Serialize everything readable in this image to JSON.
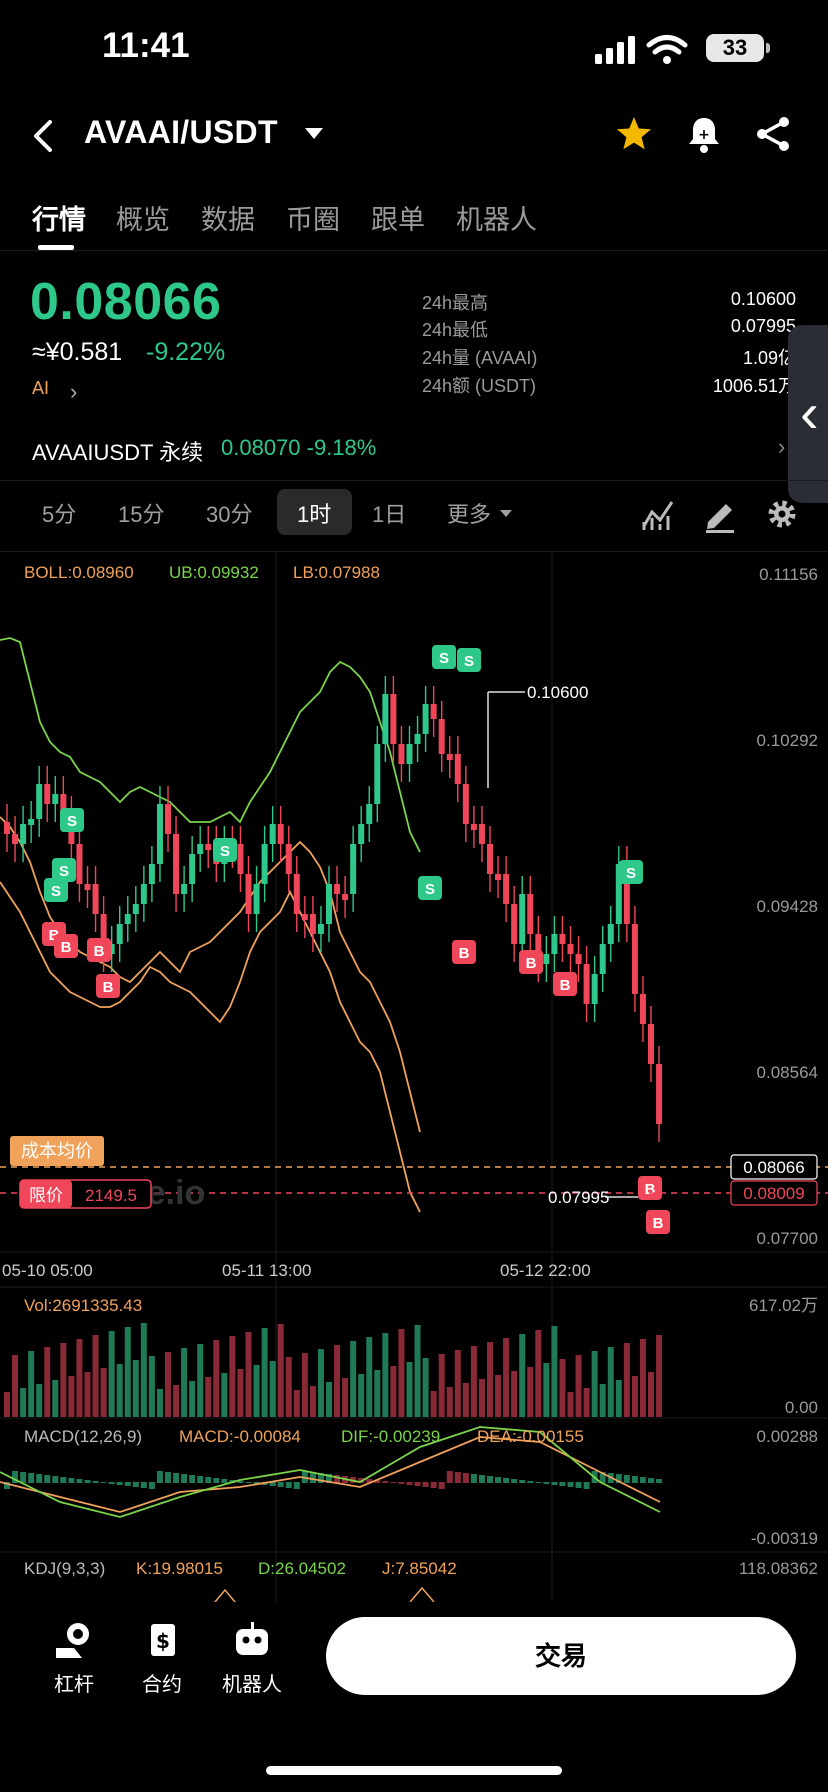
{
  "status_bar": {
    "time": "11:41",
    "battery": "33"
  },
  "header": {
    "pair": "AVAAI/USDT"
  },
  "tabs": [
    "行情",
    "概览",
    "数据",
    "币圈",
    "跟单",
    "机器人"
  ],
  "ticker": {
    "price": "0.08066",
    "cny": "≈¥0.581",
    "change": "-9.22%",
    "ai_label": "AI",
    "stats": [
      {
        "label": "24h最高",
        "value": "0.10600"
      },
      {
        "label": "24h最低",
        "value": "0.07995"
      },
      {
        "label": "24h量 (AVAAI)",
        "value": "1.09亿"
      },
      {
        "label": "24h额 (USDT)",
        "value": "1006.51万"
      }
    ],
    "perpetual": {
      "name": "AVAAIUSDT 永续",
      "value": "0.08070  -9.18%"
    }
  },
  "timeframes": [
    "5分",
    "15分",
    "30分",
    "1时",
    "1日",
    "更多"
  ],
  "timeframe_selected": "1时",
  "chart": {
    "boll": "BOLL:0.08960",
    "ub": "UB:0.09932",
    "lb": "LB:0.07988",
    "price_axis": [
      "0.11156",
      "0.10292",
      "0.09428",
      "0.08564",
      "0.07700"
    ],
    "time_axis": [
      "05-10 05:00",
      "05-11 13:00",
      "05-12 22:00"
    ],
    "high_marker": "0.10600",
    "low_marker": "0.07995",
    "current_price_tag": "0.08066",
    "limit_price_tag": "0.08009",
    "cost_label": "成本均价",
    "limit_label": "限价",
    "limit_value": "2149.5",
    "watermark": "Gate.io",
    "vol_label": "Vol:2691335.43",
    "vol_max": "617.02万",
    "vol_min": "0.00",
    "macd_label": "MACD(12,26,9)",
    "macd_value": "MACD:-0.00084",
    "dif_value": "DIF:-0.00239",
    "dea_value": "DEA:-0.00155",
    "macd_max": "0.00288",
    "macd_min": "-0.00319",
    "kdj_label": "KDJ(9,3,3)",
    "k_value": "K:19.98015",
    "d_value": "D:26.04502",
    "j_value": "J:7.85042",
    "kdj_max": "118.08362",
    "buy_marker": "B",
    "sell_marker": "S",
    "colors": {
      "up": "#2ec98a",
      "down": "#f0465a",
      "boll_mid": "#f0a25a",
      "boll_band": "#7bd44a"
    }
  },
  "bottom_nav": {
    "items": [
      "杠杆",
      "合约",
      "机器人"
    ],
    "trade_label": "交易"
  }
}
